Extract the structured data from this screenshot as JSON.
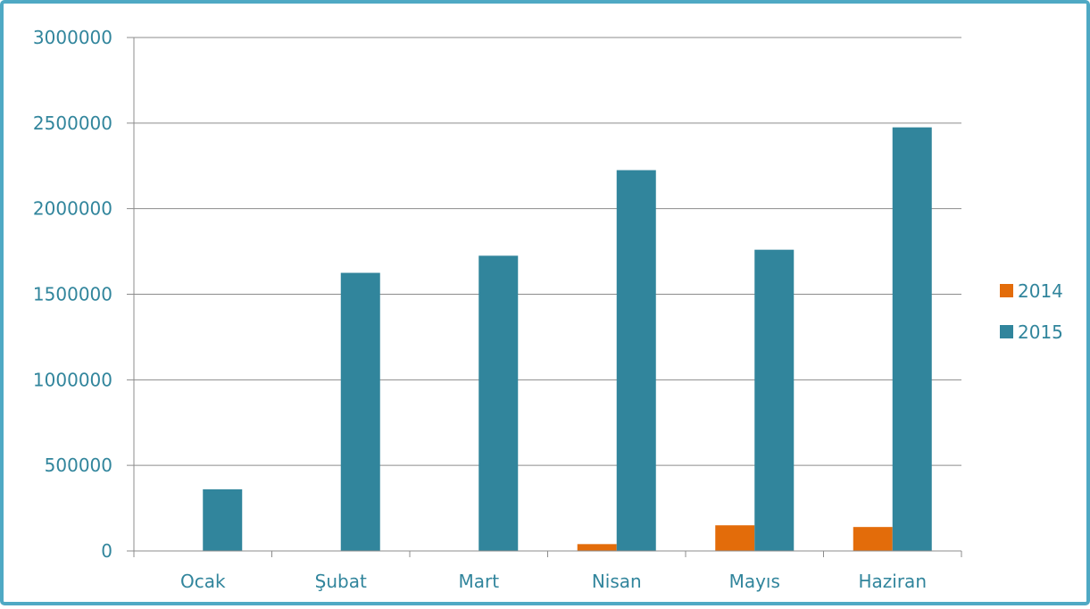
{
  "chart_data": {
    "type": "bar",
    "title": "",
    "xlabel": "",
    "ylabel": "",
    "categories": [
      "Ocak",
      "Şubat",
      "Mart",
      "Nisan",
      "Mayıs",
      "Haziran"
    ],
    "series": [
      {
        "name": "2014",
        "color": "#e36c0a",
        "values": [
          0,
          0,
          0,
          40000,
          150000,
          140000
        ]
      },
      {
        "name": "2015",
        "color": "#31859c",
        "values": [
          360000,
          1625000,
          1725000,
          2225000,
          1760000,
          2475000
        ]
      }
    ],
    "ylim": [
      0,
      3000000
    ],
    "yticks": [
      "0",
      "500000",
      "1000000",
      "1500000",
      "2000000",
      "2500000",
      "3000000"
    ],
    "grid": true,
    "legend_position": "right",
    "text_color": "#31859c",
    "grid_color": "#8c8c8c",
    "frame_color": "#4fa9c4"
  }
}
